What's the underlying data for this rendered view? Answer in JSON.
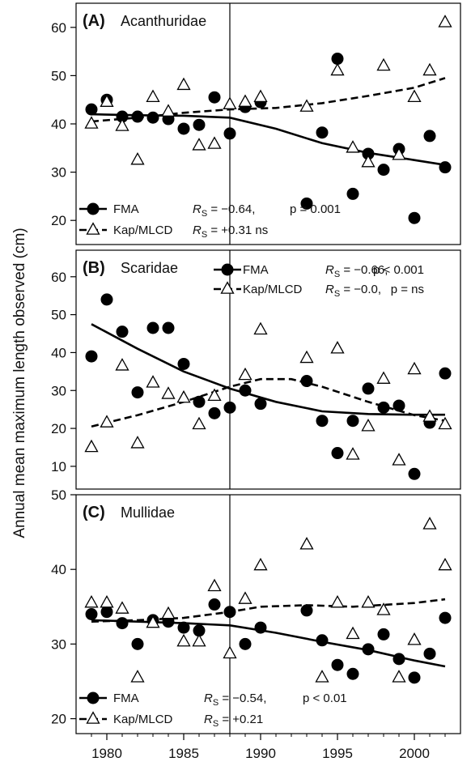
{
  "chart_data": {
    "type": "scatter",
    "ylabel": "Annual mean maximum length observed (cm)",
    "x_ticks": [
      1980,
      1985,
      1990,
      1995,
      2000
    ],
    "xlim": [
      1978,
      2003
    ],
    "vline_x": 1988,
    "panels": [
      {
        "letter": "(A)",
        "name": "Acanthuridae",
        "ylim": [
          15,
          65
        ],
        "y_ticks": [
          20,
          30,
          40,
          50,
          60
        ],
        "series": [
          {
            "name": "FMA",
            "marker": "circle",
            "x": [
              1979,
              1980,
              1981,
              1982,
              1983,
              1984,
              1985,
              1986,
              1987,
              1988,
              1989,
              1990,
              1993,
              1994,
              1995,
              1996,
              1997,
              1998,
              1999,
              2000,
              2001,
              2002
            ],
            "y": [
              43,
              45,
              41.5,
              41.5,
              41.3,
              41,
              39,
              39.8,
              45.5,
              38,
              43.5,
              44.5,
              23.5,
              38.2,
              53.5,
              25.5,
              33.8,
              30.5,
              34.8,
              20.5,
              37.5,
              31
            ],
            "trend_x": [
              1979,
              1982,
              1985,
              1988,
              1991,
              1994,
              1997,
              2000,
              2002
            ],
            "trend_y": [
              42,
              41.8,
              41.7,
              41.3,
              39,
              36,
              34,
              32.5,
              31.5
            ],
            "stat_rs": "= −0.64,",
            "stat_p": "p = 0.001"
          },
          {
            "name": "Kap/MLCD",
            "marker": "triangle",
            "x": [
              1979,
              1980,
              1981,
              1982,
              1983,
              1984,
              1985,
              1986,
              1987,
              1988,
              1989,
              1990,
              1993,
              1995,
              1996,
              1997,
              1998,
              1999,
              2000,
              2001,
              2002
            ],
            "y": [
              40,
              44.5,
              39.5,
              32.5,
              45.5,
              42.5,
              48,
              35.5,
              35.8,
              44,
              44.5,
              45.5,
              43.5,
              51,
              35,
              32,
              52,
              33.5,
              45.5,
              51,
              61
            ],
            "trend_x": [
              1979,
              1982,
              1985,
              1988,
              1991,
              1994,
              1997,
              2000,
              2002
            ],
            "trend_y": [
              40.5,
              41.3,
              42.3,
              43,
              43.3,
              44.3,
              45.8,
              47.5,
              49.5
            ],
            "stat_rs": "= +0.31 ns",
            "stat_p": ""
          }
        ]
      },
      {
        "letter": "(B)",
        "name": "Scaridae",
        "ylim": [
          4,
          67
        ],
        "y_ticks": [
          10,
          20,
          30,
          40,
          50,
          60
        ],
        "series": [
          {
            "name": "FMA",
            "marker": "circle",
            "x": [
              1979,
              1980,
              1981,
              1982,
              1983,
              1984,
              1985,
              1986,
              1987,
              1988,
              1989,
              1990,
              1993,
              1994,
              1995,
              1996,
              1997,
              1998,
              1999,
              2000,
              2001,
              2002
            ],
            "y": [
              39,
              54,
              45.5,
              29.5,
              46.5,
              46.5,
              37,
              27,
              24,
              25.5,
              30,
              26.5,
              32.5,
              22,
              13.5,
              22,
              30.5,
              25.5,
              26,
              8,
              21.5,
              34.5
            ],
            "trend_x": [
              1979,
              1982,
              1985,
              1988,
              1991,
              1994,
              1997,
              2000,
              2002
            ],
            "trend_y": [
              47.5,
              41,
              35,
              30.5,
              27,
              24.5,
              23.8,
              23.6,
              23.6
            ],
            "stat_rs": "= −0.66,",
            "stat_p": "p < 0.001"
          },
          {
            "name": "Kap/MLCD",
            "marker": "triangle",
            "x": [
              1979,
              1980,
              1981,
              1982,
              1983,
              1984,
              1985,
              1986,
              1987,
              1989,
              1990,
              1993,
              1995,
              1996,
              1997,
              1998,
              1999,
              2000,
              2001,
              2002
            ],
            "y": [
              15,
              21.5,
              36.5,
              16,
              32,
              29,
              28,
              21,
              28.5,
              34,
              46,
              38.5,
              41,
              13,
              20.5,
              33,
              11.5,
              35.5,
              23,
              21
            ],
            "trend_x": [
              1979,
              1982,
              1985,
              1988,
              1990,
              1992,
              1994,
              1997,
              2000,
              2002
            ],
            "trend_y": [
              20.5,
              23.5,
              27,
              31,
              33,
              33,
              31,
              27,
              23.5,
              22
            ],
            "stat_rs": "= −0.0,",
            "stat_p": "p = ns"
          }
        ]
      },
      {
        "letter": "(C)",
        "name": "Mullidae",
        "ylim": [
          18,
          50
        ],
        "y_ticks": [
          20,
          30,
          40,
          50
        ],
        "series": [
          {
            "name": "FMA",
            "marker": "circle",
            "x": [
              1979,
              1980,
              1981,
              1982,
              1983,
              1984,
              1985,
              1986,
              1987,
              1988,
              1989,
              1990,
              1993,
              1994,
              1995,
              1996,
              1997,
              1998,
              1999,
              2000,
              2001,
              2002
            ],
            "y": [
              34,
              34.3,
              32.8,
              30,
              33.2,
              33,
              32.2,
              31.8,
              35.3,
              34.3,
              30,
              32.2,
              34.5,
              30.5,
              27.2,
              26,
              29.3,
              31.3,
              28,
              25.5,
              28.7,
              33.5
            ],
            "trend_x": [
              1979,
              1982,
              1985,
              1988,
              1991,
              1994,
              1997,
              2000,
              2002
            ],
            "trend_y": [
              33.2,
              33,
              32.8,
              32.5,
              31.5,
              30.3,
              29.2,
              27.8,
              27
            ],
            "stat_rs": "= −0.54,",
            "stat_p": "p < 0.01"
          },
          {
            "name": "Kap/MLCD",
            "marker": "triangle",
            "x": [
              1979,
              1980,
              1981,
              1982,
              1983,
              1984,
              1985,
              1986,
              1987,
              1988,
              1989,
              1990,
              1993,
              1994,
              1995,
              1996,
              1997,
              1998,
              1999,
              2000,
              2001,
              2002
            ],
            "y": [
              35.5,
              35.5,
              34.7,
              25.5,
              32.8,
              34,
              30.3,
              30.3,
              37.7,
              28.7,
              36,
              40.5,
              43.3,
              25.5,
              35.5,
              31.3,
              35.5,
              34.5,
              25.5,
              30.5,
              46,
              40.5
            ],
            "trend_x": [
              1979,
              1982,
              1985,
              1988,
              1990,
              1993,
              1996,
              2000,
              2002
            ],
            "trend_y": [
              33,
              33.2,
              33.5,
              34.3,
              35,
              35.2,
              35,
              35.5,
              36
            ],
            "stat_rs": "= +0.21",
            "stat_p": ""
          }
        ]
      }
    ]
  }
}
